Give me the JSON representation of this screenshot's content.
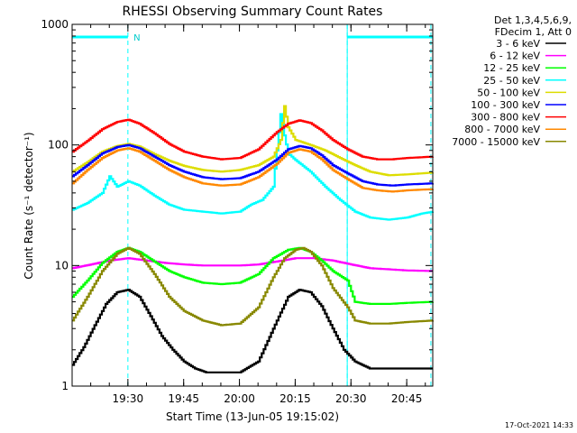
{
  "chart_data": {
    "type": "line",
    "title": "RHESSI Observing Summary Count Rates",
    "ylabel": "Count Rate (s⁻¹ detector⁻¹)",
    "xlabel": "Start Time (13-Jun-05 19:15:02)",
    "yscale": "log",
    "ylim": [
      1,
      1000
    ],
    "xlim_minutes": [
      0,
      97
    ],
    "y_ticks": [
      {
        "value": 1,
        "label": "1"
      },
      {
        "value": 10,
        "label": "10"
      },
      {
        "value": 100,
        "label": "100"
      },
      {
        "value": 1000,
        "label": "1000"
      }
    ],
    "x_ticks": [
      {
        "minute": 15,
        "label": "19:30"
      },
      {
        "minute": 30,
        "label": "19:45"
      },
      {
        "minute": 45,
        "label": "20:00"
      },
      {
        "minute": 60,
        "label": "20:15"
      },
      {
        "minute": 75,
        "label": "20:30"
      },
      {
        "minute": 90,
        "label": "20:45"
      }
    ],
    "legend_header": [
      "Det 1,3,4,5,6,9,",
      "FDecim 1, Att 0"
    ],
    "series": [
      {
        "name": "3 - 6 keV",
        "color": "#000000",
        "x": [
          0,
          3,
          6,
          9,
          12,
          15,
          18,
          21,
          24,
          27,
          30,
          33,
          36,
          40,
          45,
          50,
          55,
          58,
          61,
          64,
          67,
          70,
          73,
          76,
          80,
          85,
          90,
          93,
          97
        ],
        "y": [
          1.5,
          2.1,
          3.2,
          4.8,
          6.0,
          6.3,
          5.5,
          3.8,
          2.6,
          2.0,
          1.6,
          1.4,
          1.3,
          1.3,
          1.3,
          1.6,
          3.5,
          5.5,
          6.3,
          6.0,
          4.6,
          3.0,
          2.0,
          1.6,
          1.4,
          1.4,
          1.4,
          1.4,
          1.4
        ]
      },
      {
        "name": "6 - 12 keV",
        "color": "#ff00ff",
        "x": [
          0,
          5,
          10,
          15,
          20,
          25,
          30,
          35,
          40,
          45,
          50,
          55,
          60,
          65,
          70,
          75,
          80,
          85,
          90,
          97
        ],
        "y": [
          9.5,
          10.2,
          11.0,
          11.5,
          11.0,
          10.5,
          10.2,
          10.0,
          10.0,
          10.0,
          10.2,
          10.8,
          11.5,
          11.5,
          11.0,
          10.2,
          9.5,
          9.3,
          9.1,
          9.0
        ]
      },
      {
        "name": "12 - 25 keV",
        "color": "#00ff00",
        "x": [
          0,
          4,
          8,
          12,
          15,
          18,
          22,
          26,
          30,
          35,
          40,
          45,
          50,
          54,
          58,
          61,
          64,
          67,
          70,
          74,
          76,
          80,
          85,
          90,
          97
        ],
        "y": [
          5.5,
          7.5,
          10.5,
          13.0,
          14.0,
          13.0,
          10.8,
          9.0,
          8.0,
          7.2,
          7.0,
          7.2,
          8.5,
          11.5,
          13.5,
          14.0,
          13.0,
          11.0,
          9.0,
          7.5,
          5.0,
          4.8,
          4.8,
          4.9,
          5.0
        ]
      },
      {
        "name": "25 - 50 keV",
        "color": "#00ffff",
        "x": [
          0,
          4,
          8,
          10,
          12,
          15,
          18,
          22,
          26,
          30,
          35,
          40,
          45,
          48,
          51,
          54,
          56,
          57,
          58,
          60,
          64,
          68,
          72,
          76,
          80,
          85,
          90,
          94,
          97
        ],
        "y": [
          29,
          33,
          40,
          55,
          45,
          50,
          46,
          38,
          32,
          29,
          28,
          27,
          28,
          32,
          35,
          45,
          180,
          120,
          85,
          75,
          60,
          45,
          35,
          28,
          25,
          24,
          25,
          27,
          28
        ]
      },
      {
        "name": "50 - 100 keV",
        "color": "#dddd00",
        "x": [
          0,
          4,
          8,
          12,
          15,
          18,
          22,
          26,
          30,
          35,
          40,
          45,
          50,
          54,
          56,
          57,
          58,
          60,
          64,
          68,
          72,
          76,
          80,
          85,
          90,
          97
        ],
        "y": [
          60,
          72,
          88,
          98,
          102,
          97,
          84,
          74,
          67,
          62,
          60,
          62,
          68,
          80,
          110,
          210,
          140,
          110,
          100,
          90,
          78,
          68,
          60,
          56,
          57,
          59
        ]
      },
      {
        "name": "100 - 300 keV",
        "color": "#0000ff",
        "x": [
          0,
          4,
          8,
          12,
          15,
          18,
          22,
          26,
          30,
          35,
          40,
          45,
          50,
          55,
          58,
          61,
          64,
          67,
          70,
          74,
          78,
          82,
          86,
          90,
          97
        ],
        "y": [
          55,
          68,
          85,
          96,
          100,
          94,
          80,
          68,
          60,
          54,
          52,
          53,
          60,
          76,
          92,
          98,
          94,
          82,
          68,
          58,
          50,
          47,
          46,
          47,
          48
        ]
      },
      {
        "name": "300 - 800 keV",
        "color": "#ff0000",
        "x": [
          0,
          4,
          8,
          12,
          15,
          18,
          22,
          26,
          30,
          35,
          40,
          45,
          50,
          55,
          58,
          61,
          64,
          67,
          70,
          74,
          78,
          82,
          86,
          90,
          97
        ],
        "y": [
          88,
          108,
          135,
          155,
          162,
          150,
          125,
          102,
          88,
          80,
          76,
          78,
          92,
          128,
          150,
          160,
          152,
          132,
          110,
          92,
          80,
          76,
          76,
          78,
          80
        ]
      },
      {
        "name": "800 - 7000 keV",
        "color": "#ff8800",
        "x": [
          0,
          4,
          8,
          12,
          15,
          18,
          22,
          26,
          30,
          35,
          40,
          45,
          50,
          55,
          58,
          61,
          64,
          67,
          70,
          74,
          78,
          82,
          86,
          90,
          97
        ],
        "y": [
          48,
          62,
          78,
          90,
          94,
          88,
          74,
          62,
          54,
          48,
          46,
          47,
          54,
          70,
          86,
          92,
          88,
          76,
          62,
          52,
          44,
          42,
          41,
          42,
          43
        ]
      },
      {
        "name": "7000 - 15000 keV",
        "color": "#888800",
        "x": [
          0,
          4,
          8,
          12,
          15,
          18,
          22,
          26,
          30,
          35,
          40,
          45,
          50,
          54,
          57,
          60,
          62,
          64,
          67,
          70,
          74,
          76,
          80,
          85,
          90,
          97
        ],
        "y": [
          3.5,
          5.5,
          9.0,
          12.5,
          14.0,
          12.5,
          8.5,
          5.5,
          4.2,
          3.5,
          3.2,
          3.3,
          4.5,
          8.0,
          11.5,
          13.5,
          14.0,
          13.0,
          10.0,
          6.5,
          4.5,
          3.5,
          3.3,
          3.3,
          3.4,
          3.5
        ]
      }
    ],
    "attenuator_bars": [
      {
        "x0": 0,
        "x1": 15,
        "label": "N"
      },
      {
        "x0": 74,
        "x1": 97,
        "label": ""
      }
    ],
    "cyan_markers_minutes": [
      15,
      74,
      96.5
    ],
    "cyan_solid_minutes": [
      74
    ],
    "footer_stamp": "17-Oct-2021 14:33"
  }
}
